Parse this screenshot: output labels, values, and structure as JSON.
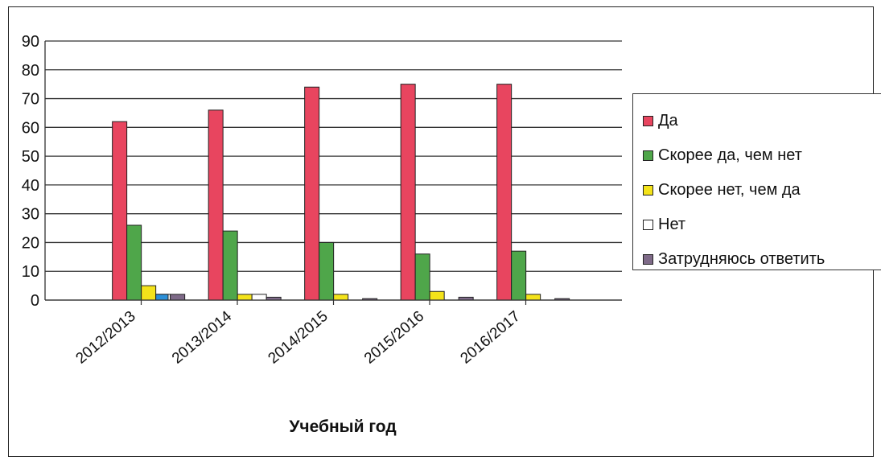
{
  "chart_data": {
    "type": "bar",
    "title": "",
    "xlabel": "Учебный год",
    "ylabel": "",
    "ylim": [
      0,
      90
    ],
    "yticks": [
      0,
      10,
      20,
      30,
      40,
      50,
      60,
      70,
      80,
      90
    ],
    "grid": true,
    "legend_position": "right",
    "categories": [
      "2012/2013",
      "2013/2014",
      "2014/2015",
      "2015/2016",
      "2016/2017"
    ],
    "series": [
      {
        "name": "Да",
        "color": "#e8455f",
        "values": [
          62,
          66,
          74,
          75,
          75
        ]
      },
      {
        "name": "Скорее да, чем нет",
        "color": "#4fa64a",
        "values": [
          26,
          24,
          20,
          16,
          17
        ]
      },
      {
        "name": "Скорее нет, чем да",
        "color": "#f4e31a",
        "values": [
          5,
          2,
          2,
          3,
          2
        ]
      },
      {
        "name": "Нет",
        "color": "#ffffff",
        "values": [
          2,
          2,
          0,
          0,
          0
        ]
      },
      {
        "name": "Затрудняюсь ответить",
        "color": "#7e6a88",
        "values": [
          2,
          1,
          0.5,
          1,
          0.5
        ]
      }
    ],
    "extra_marks": [
      {
        "category": "2012/2013",
        "color": "#2b8fd8",
        "value": 2
      }
    ]
  }
}
